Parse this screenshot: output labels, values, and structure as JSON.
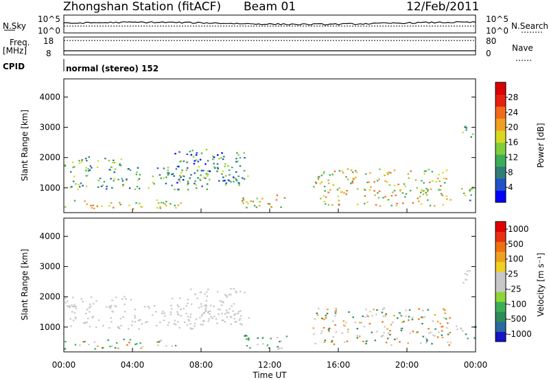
{
  "header": {
    "title": "Zhongshan Station (fitACF)",
    "beam": "Beam 01",
    "date": "12/Feb/2011"
  },
  "top_panels": {
    "nsky_label": "N.Sky",
    "nsearch_label": "N.Search",
    "count_tick_high": "10^5",
    "count_tick_low": "10^0",
    "freq_label": "Freq.",
    "freq_unit": "[MHz]",
    "freq_ticks": [
      "18",
      "8"
    ],
    "nave_label": "Nave",
    "nave_ticks": [
      "80",
      "0"
    ],
    "cpid_label": "CPID",
    "cpid_text": "normal (stereo) 152"
  },
  "chart_data": [
    {
      "type": "heatmap",
      "name": "power",
      "ylabel": "Slant Range [km]",
      "xlabel": "Time UT",
      "x_ticks": [
        "00:00",
        "04:00",
        "08:00",
        "12:00",
        "16:00",
        "20:00",
        "00:00"
      ],
      "y_ticks": [
        "1000",
        "2000",
        "3000",
        "4000"
      ],
      "ylim": [
        180,
        4600
      ],
      "xlim_hours": [
        0,
        24
      ],
      "colorbar": {
        "label": "Power [dB]",
        "ticks": [
          "4",
          "8",
          "12",
          "16",
          "20",
          "24",
          "28"
        ],
        "colors": [
          "#0000ff",
          "#1f52c8",
          "#2f7d76",
          "#3cae58",
          "#7fce3c",
          "#d8d820",
          "#f0a020",
          "#f26b1a",
          "#e81e10",
          "#d80000"
        ]
      },
      "echo_regions": [
        {
          "t": [
            0.0,
            6.8
          ],
          "r": [
            300,
            620
          ],
          "level": "high"
        },
        {
          "t": [
            0.0,
            4.0
          ],
          "r": [
            1650,
            2050
          ],
          "level": "medium"
        },
        {
          "t": [
            0.3,
            8.5
          ],
          "r": [
            950,
            1750
          ],
          "level": "medium"
        },
        {
          "t": [
            6.2,
            10.5
          ],
          "r": [
            1100,
            2300
          ],
          "level": "low"
        },
        {
          "t": [
            9.0,
            11.0
          ],
          "r": [
            1250,
            1650
          ],
          "level": "medium"
        },
        {
          "t": [
            10.3,
            13.0
          ],
          "r": [
            280,
            800
          ],
          "level": "high"
        },
        {
          "t": [
            14.5,
            22.5
          ],
          "r": [
            420,
            1650
          ],
          "level": "high"
        },
        {
          "t": [
            22.8,
            24.0
          ],
          "r": [
            600,
            1100
          ],
          "level": "medium"
        },
        {
          "t": [
            23.2,
            23.8
          ],
          "r": [
            2400,
            3100
          ],
          "level": "medium"
        }
      ]
    },
    {
      "type": "heatmap",
      "name": "velocity",
      "ylabel": "Slant Range [km]",
      "xlabel": "Time UT",
      "x_ticks": [
        "00:00",
        "04:00",
        "08:00",
        "12:00",
        "16:00",
        "20:00",
        "00:00"
      ],
      "y_ticks": [
        "1000",
        "2000",
        "3000",
        "4000"
      ],
      "ylim": [
        180,
        4600
      ],
      "xlim_hours": [
        0,
        24
      ],
      "colorbar": {
        "label": "Velocity [m s⁻¹]",
        "ticks": [
          "1000",
          "500",
          "100",
          "25",
          "-25",
          "-100",
          "-500",
          "-1000"
        ],
        "colors": [
          "#1414c8",
          "#2a6aa0",
          "#2f8a5a",
          "#3cae58",
          "#8cd638",
          "#c8c8c8",
          "#c8c8c8",
          "#f0d020",
          "#f0a020",
          "#f07010",
          "#e83010",
          "#e00000"
        ]
      },
      "echo_regions": [
        {
          "t": [
            0.0,
            6.8
          ],
          "r": [
            300,
            620
          ],
          "level": "mixed-green-orange"
        },
        {
          "t": [
            0.0,
            4.0
          ],
          "r": [
            1650,
            2050
          ],
          "level": "gray"
        },
        {
          "t": [
            0.3,
            8.5
          ],
          "r": [
            950,
            1750
          ],
          "level": "gray"
        },
        {
          "t": [
            6.2,
            10.5
          ],
          "r": [
            1100,
            2300
          ],
          "level": "gray"
        },
        {
          "t": [
            9.0,
            11.0
          ],
          "r": [
            1250,
            1650
          ],
          "level": "gray"
        },
        {
          "t": [
            10.3,
            13.0
          ],
          "r": [
            280,
            800
          ],
          "level": "green"
        },
        {
          "t": [
            14.5,
            22.5
          ],
          "r": [
            420,
            1650
          ],
          "level": "orange-gray"
        },
        {
          "t": [
            22.8,
            24.0
          ],
          "r": [
            600,
            1100
          ],
          "level": "green"
        },
        {
          "t": [
            23.2,
            23.8
          ],
          "r": [
            2400,
            3100
          ],
          "level": "gray"
        }
      ]
    }
  ]
}
